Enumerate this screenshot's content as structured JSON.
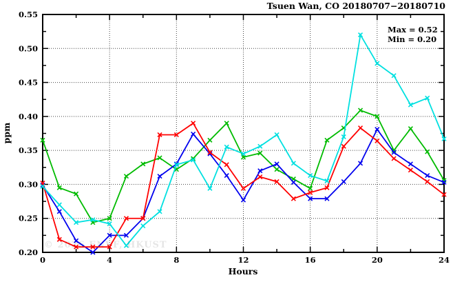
{
  "title": "Tsuen Wan, CO 20180707−20180710",
  "annotation": {
    "max_label": "Max = 0.52",
    "min_label": "Min = 0.20"
  },
  "watermark": "© 2026 ENVF, HKUST",
  "chart_data": {
    "type": "line",
    "title": "Tsuen Wan, CO 20180707−20180710",
    "xlabel": "Hours",
    "ylabel": "ppm",
    "xlim": [
      0,
      24
    ],
    "ylim": [
      0.2,
      0.55
    ],
    "grid": true,
    "legend_position": "none",
    "annotations": [
      "Max = 0.52",
      "Min = 0.20"
    ],
    "x_major_ticks": [
      0,
      4,
      8,
      12,
      16,
      20,
      24
    ],
    "x_tick_labels": [
      "0",
      "4",
      "8",
      "12",
      "16",
      "20",
      "24"
    ],
    "x_minor_ticks": [
      2,
      6,
      10,
      14,
      18,
      22
    ],
    "y_major_ticks": [
      0.2,
      0.25,
      0.3,
      0.35,
      0.4,
      0.45,
      0.5,
      0.55
    ],
    "y_tick_labels": [
      "0.20",
      "0.25",
      "0.30",
      "0.35",
      "0.40",
      "0.45",
      "0.50",
      "0.55"
    ],
    "y_minor_ticks": [
      0.225,
      0.275,
      0.325,
      0.375,
      0.425,
      0.475,
      0.525
    ],
    "x": [
      0,
      1,
      2,
      3,
      4,
      5,
      6,
      7,
      8,
      9,
      10,
      11,
      12,
      13,
      14,
      15,
      16,
      17,
      18,
      19,
      20,
      21,
      22,
      23,
      24
    ],
    "series": [
      {
        "name": "green",
        "color": "#00bb00",
        "values": [
          0.365,
          0.295,
          0.286,
          0.244,
          0.25,
          0.312,
          0.33,
          0.339,
          0.322,
          0.338,
          0.365,
          0.39,
          0.34,
          0.346,
          0.322,
          0.308,
          0.294,
          0.365,
          0.383,
          0.409,
          0.4,
          0.35,
          0.382,
          0.348,
          0.306
        ]
      },
      {
        "name": "blue",
        "color": "#0000ee",
        "values": [
          0.299,
          0.26,
          0.217,
          0.2,
          0.225,
          0.225,
          0.25,
          0.312,
          0.33,
          0.374,
          0.345,
          0.313,
          0.277,
          0.32,
          0.33,
          0.303,
          0.279,
          0.279,
          0.304,
          0.331,
          0.381,
          0.347,
          0.33,
          0.313,
          0.303
        ]
      },
      {
        "name": "red",
        "color": "#ff0000",
        "values": [
          0.302,
          0.219,
          0.208,
          0.208,
          0.208,
          0.25,
          0.25,
          0.373,
          0.373,
          0.39,
          0.347,
          0.329,
          0.294,
          0.311,
          0.304,
          0.279,
          0.288,
          0.295,
          0.356,
          0.383,
          0.364,
          0.338,
          0.321,
          0.304,
          0.285
        ]
      },
      {
        "name": "cyan",
        "color": "#00e0e0",
        "values": [
          0.297,
          0.27,
          0.244,
          0.248,
          0.242,
          0.21,
          0.239,
          0.26,
          0.329,
          0.336,
          0.294,
          0.355,
          0.345,
          0.356,
          0.373,
          0.331,
          0.313,
          0.305,
          0.37,
          0.52,
          0.478,
          0.46,
          0.417,
          0.427,
          0.367
        ]
      }
    ]
  }
}
